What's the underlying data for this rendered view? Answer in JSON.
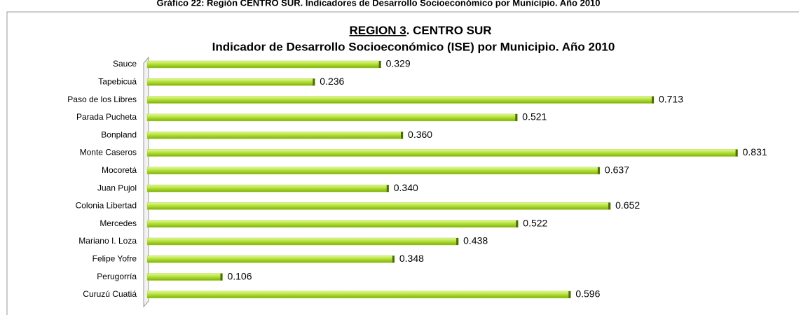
{
  "chart_data": {
    "type": "bar",
    "caption": "Gráfico 22: Región CENTRO SUR. Indicadores de Desarrollo Socioeconómico por Municipio. Año 2010",
    "title_underlined": "REGION 3",
    "title_rest": ". CENTRO SUR",
    "subtitle": "Indicador de Desarrollo Socioeconómico (ISE) por Municipio. Año 2010",
    "categories": [
      "Sauce",
      "Tapebicuá",
      "Paso de los Libres",
      "Parada Pucheta",
      "Bonpland",
      "Monte Caseros",
      "Mocoretá",
      "Juan Pujol",
      "Colonia Libertad",
      "Mercedes",
      "Mariano I. Loza",
      "Felipe Yofre",
      "Perugorría",
      "Curuzú Cuatiá"
    ],
    "values": [
      0.329,
      0.236,
      0.713,
      0.521,
      0.36,
      0.831,
      0.637,
      0.34,
      0.652,
      0.522,
      0.438,
      0.348,
      0.106,
      0.596
    ],
    "value_labels": [
      "0.329",
      "0.236",
      "0.713",
      "0.521",
      "0.360",
      "0.831",
      "0.637",
      "0.340",
      "0.652",
      "0.522",
      "0.438",
      "0.348",
      "0.106",
      "0.596"
    ],
    "color": "#a8d82a"
  }
}
